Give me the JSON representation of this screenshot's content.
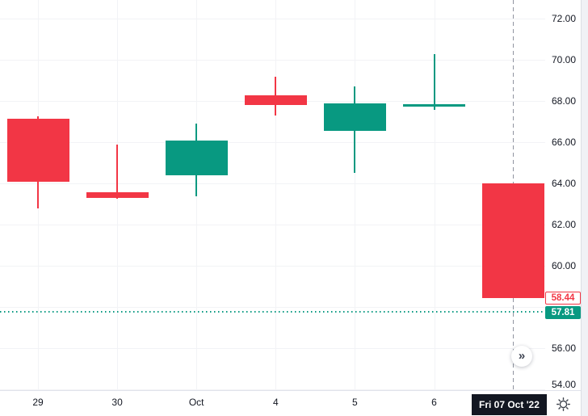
{
  "chart_data": {
    "type": "candlestick",
    "up_color": "#089981",
    "down_color": "#F23645",
    "grid_on": true,
    "x_tick_labels": [
      "29",
      "30",
      "Oct",
      "4",
      "5",
      "6"
    ],
    "y_axis": {
      "min": 54,
      "max": 72,
      "tick_step": 2,
      "tick_labels": [
        "72.00",
        "70.00",
        "68.00",
        "66.00",
        "64.00",
        "62.00",
        "60.00",
        "56.00",
        "54.00"
      ]
    },
    "gridline_prices": [
      72,
      70,
      68,
      66,
      64,
      62,
      60,
      58,
      56,
      54
    ],
    "candles": [
      {
        "x_label": "29",
        "open": 67.15,
        "high": 67.25,
        "low": 62.8,
        "close": 64.1
      },
      {
        "x_label": "30",
        "open": 63.6,
        "high": 65.9,
        "low": 63.25,
        "close": 63.3
      },
      {
        "x_label": "Oct",
        "open": 64.4,
        "high": 66.9,
        "low": 63.4,
        "close": 66.1
      },
      {
        "x_label": "4",
        "open": 68.3,
        "high": 69.2,
        "low": 67.3,
        "close": 67.8
      },
      {
        "x_label": "5",
        "open": 66.55,
        "high": 68.7,
        "low": 64.5,
        "close": 67.9
      },
      {
        "x_label": "6",
        "open": 67.75,
        "high": 70.3,
        "low": 67.6,
        "close": 67.85
      },
      {
        "x_label": "Fri 07 Oct '22",
        "open": 64.0,
        "high": 64.0,
        "low": 58.44,
        "close": 58.44
      }
    ],
    "last_price_label": {
      "value": "58.44",
      "direction": "down",
      "color": "#F23645"
    },
    "prev_close_line": {
      "value": "57.81",
      "price": 57.81,
      "color": "#089981",
      "style": "dotted"
    },
    "crosshair": {
      "date_label": "Fri 07 Oct '22",
      "x_index": 6,
      "style": "dashed"
    }
  },
  "controls": {
    "go_to_realtime_glyph": "»",
    "settings_icon": "gear-icon"
  }
}
